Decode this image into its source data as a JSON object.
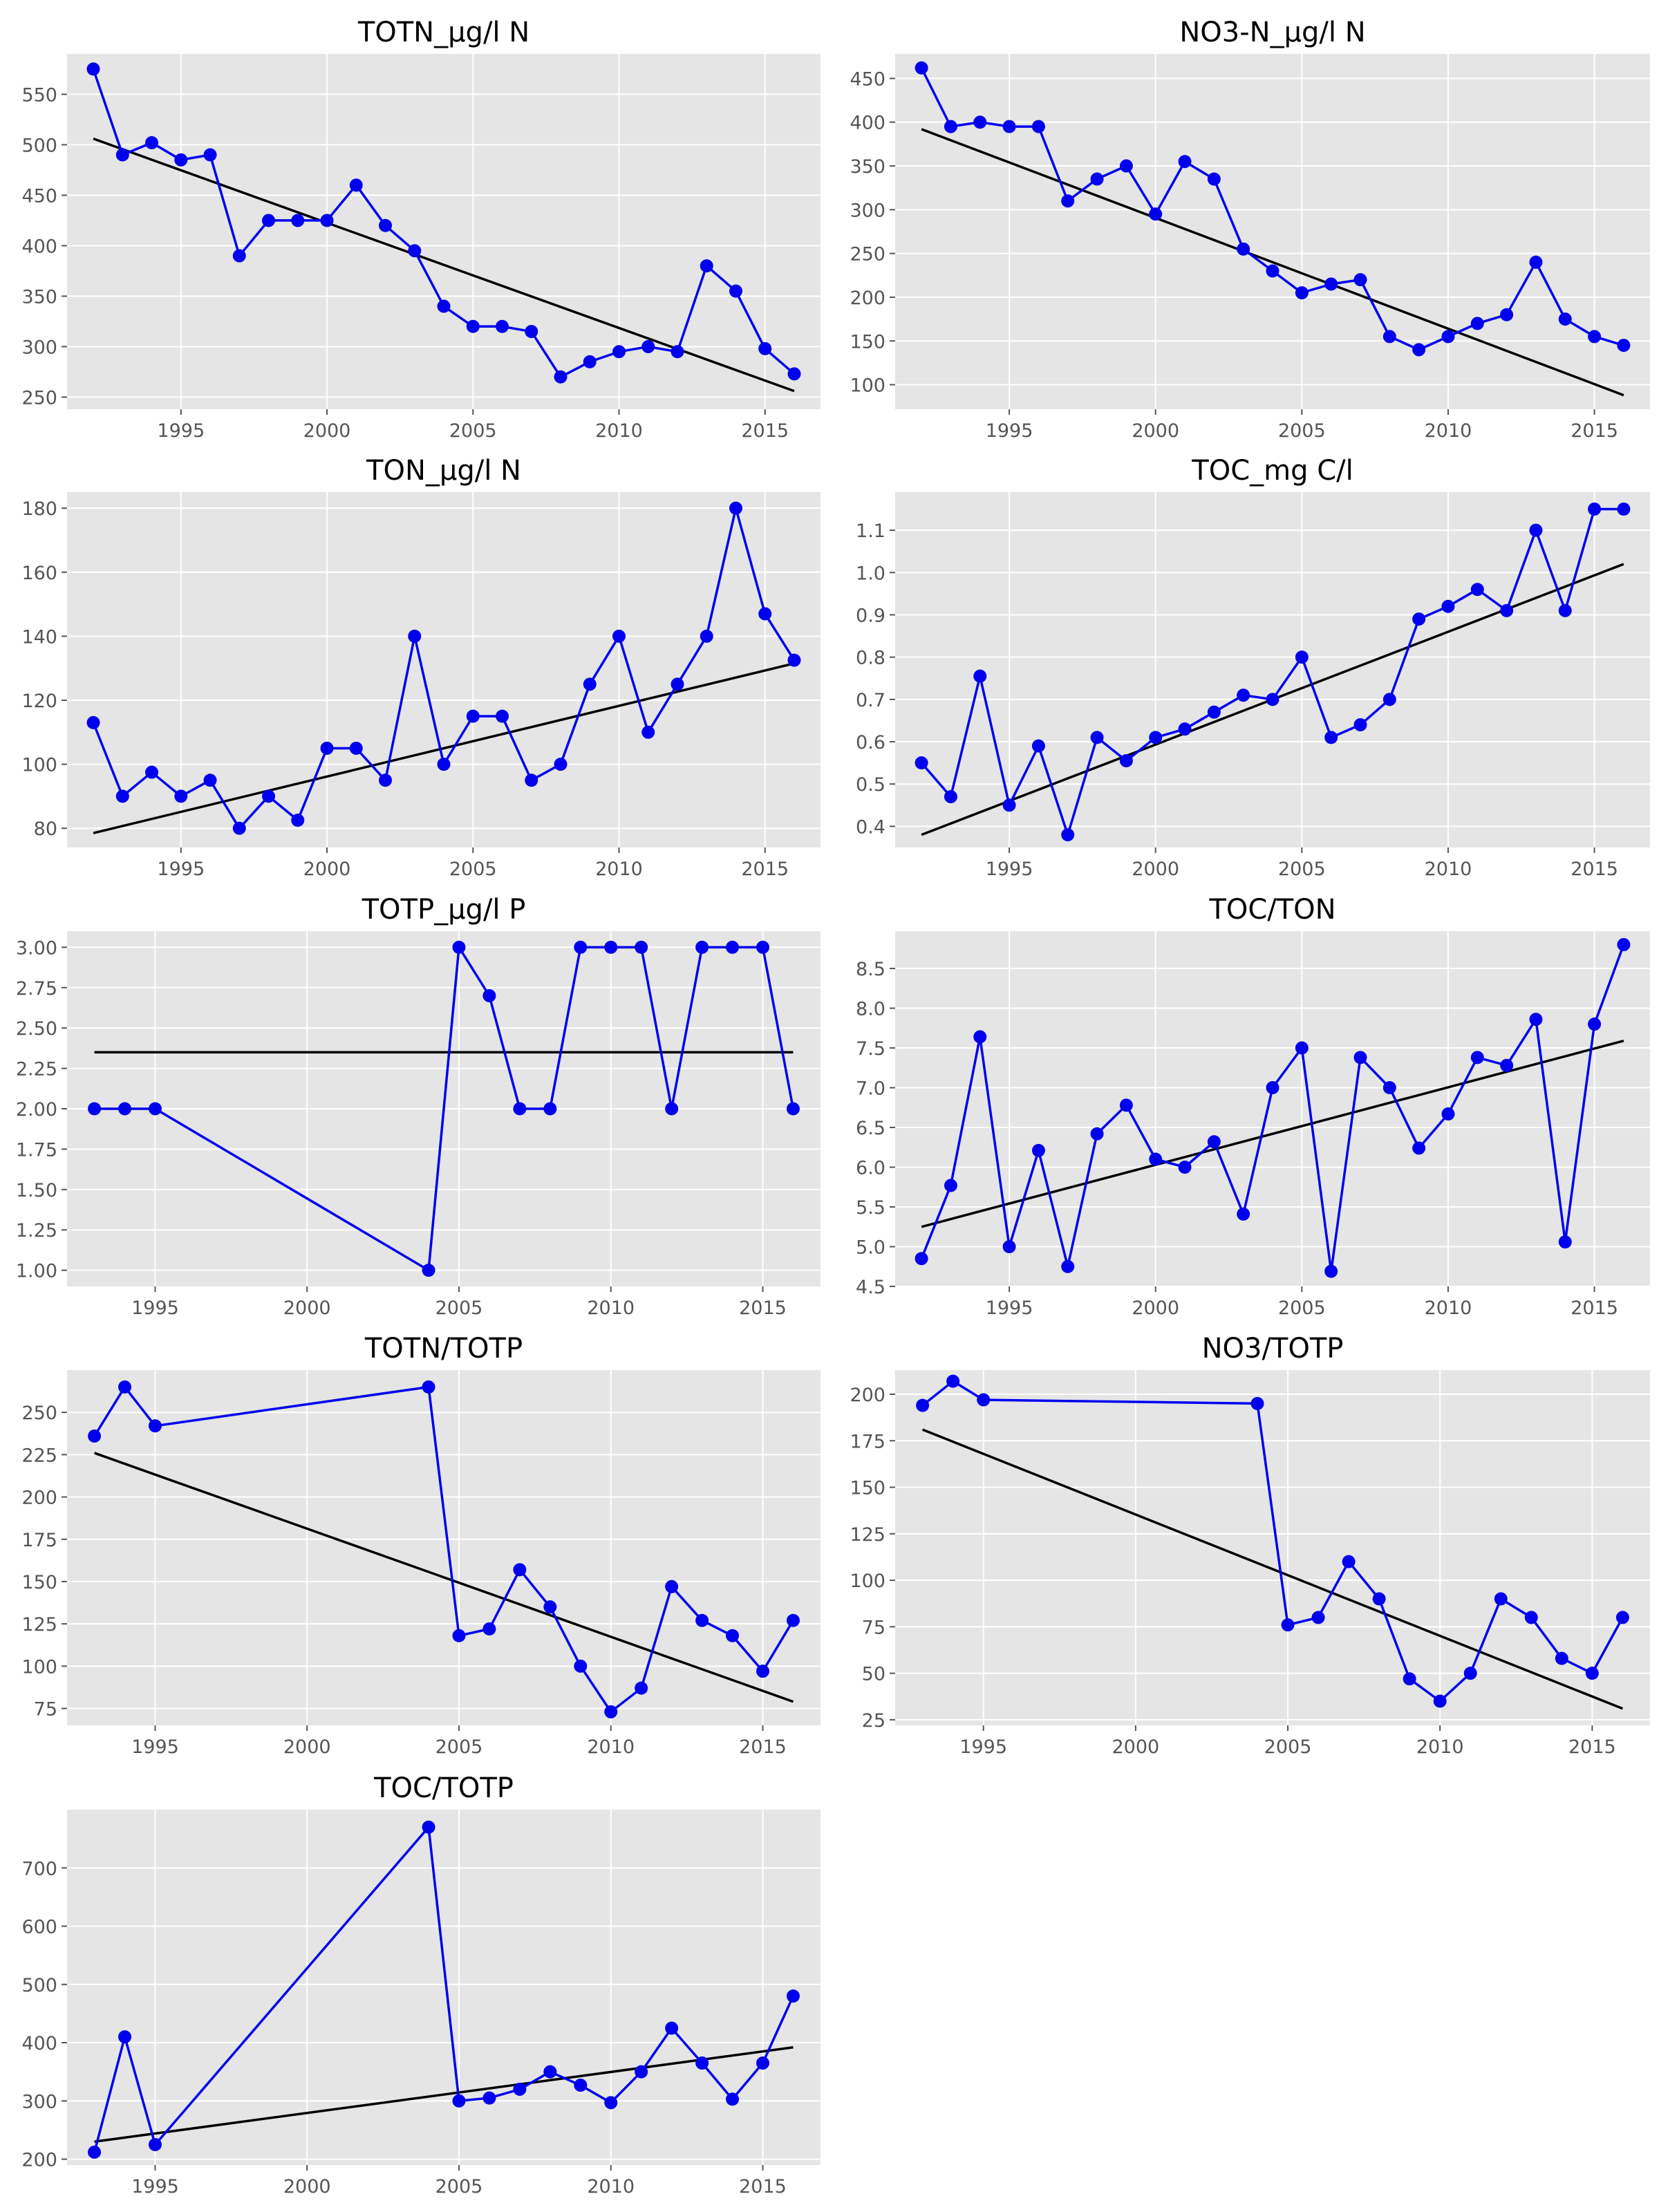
{
  "figure": {
    "layout": "5x2 grid of line plots with linear trend lines",
    "style": "ggplot"
  },
  "colors": {
    "panel_bg": "#e5e5e5",
    "grid": "#ffffff",
    "data_line": "#0000ee",
    "marker": "#0000ee",
    "trend": "#000000",
    "tick_text": "#555555"
  },
  "chart_data": [
    {
      "type": "line",
      "title": "TOTN_µg/l N",
      "grid": true,
      "xlim": [
        1991.1,
        2016.9
      ],
      "ylim": [
        238,
        590
      ],
      "xticks": [
        1995,
        2000,
        2005,
        2010,
        2015
      ],
      "yticks": [
        250,
        300,
        350,
        400,
        450,
        500,
        550
      ],
      "x": [
        1992,
        1993,
        1994,
        1995,
        1996,
        1997,
        1998,
        1999,
        2000,
        2001,
        2002,
        2003,
        2004,
        2005,
        2006,
        2007,
        2008,
        2009,
        2010,
        2011,
        2012,
        2013,
        2014,
        2015,
        2016
      ],
      "series": [
        {
          "values": [
            575,
            490,
            502,
            485,
            490,
            390,
            425,
            425,
            425,
            460,
            420,
            395,
            340,
            320,
            320,
            315,
            270,
            285,
            295,
            300,
            295,
            380,
            355,
            298,
            273
          ]
        }
      ],
      "trend": {
        "x": [
          1992,
          2016
        ],
        "y": [
          506,
          256
        ]
      }
    },
    {
      "type": "line",
      "title": "NO3-N_µg/l N",
      "grid": true,
      "xlim": [
        1991.1,
        2016.9
      ],
      "ylim": [
        72,
        478
      ],
      "xticks": [
        1995,
        2000,
        2005,
        2010,
        2015
      ],
      "yticks": [
        100,
        150,
        200,
        250,
        300,
        350,
        400,
        450
      ],
      "x": [
        1992,
        1993,
        1994,
        1995,
        1996,
        1997,
        1998,
        1999,
        2000,
        2001,
        2002,
        2003,
        2004,
        2005,
        2006,
        2007,
        2008,
        2009,
        2010,
        2011,
        2012,
        2013,
        2014,
        2015,
        2016
      ],
      "series": [
        {
          "values": [
            462,
            395,
            400,
            395,
            395,
            310,
            335,
            350,
            295,
            355,
            335,
            255,
            230,
            205,
            215,
            220,
            155,
            140,
            155,
            170,
            180,
            240,
            175,
            155,
            145
          ]
        }
      ],
      "trend": {
        "x": [
          1992,
          2016
        ],
        "y": [
          392,
          88
        ]
      }
    },
    {
      "type": "line",
      "title": "TON_µg/l N",
      "grid": true,
      "xlim": [
        1991.1,
        2016.9
      ],
      "ylim": [
        74,
        185
      ],
      "xticks": [
        1995,
        2000,
        2005,
        2010,
        2015
      ],
      "yticks": [
        80,
        100,
        120,
        140,
        160,
        180
      ],
      "x": [
        1992,
        1993,
        1994,
        1995,
        1996,
        1997,
        1998,
        1999,
        2000,
        2001,
        2002,
        2003,
        2004,
        2005,
        2006,
        2007,
        2008,
        2009,
        2010,
        2011,
        2012,
        2013,
        2014,
        2015,
        2016
      ],
      "series": [
        {
          "values": [
            113,
            90,
            97.5,
            90,
            95,
            80,
            90,
            82.5,
            105,
            105,
            95,
            140,
            100,
            115,
            115,
            95,
            100,
            125,
            140,
            110,
            125,
            140,
            180,
            147,
            132.5
          ]
        }
      ],
      "trend": {
        "x": [
          1992,
          2016
        ],
        "y": [
          78.5,
          131.5
        ]
      }
    },
    {
      "type": "line",
      "title": "TOC_mg C/l",
      "grid": true,
      "xlim": [
        1991.1,
        2016.9
      ],
      "ylim": [
        0.35,
        1.19
      ],
      "xticks": [
        1995,
        2000,
        2005,
        2010,
        2015
      ],
      "yticks": [
        0.4,
        0.5,
        0.6,
        0.7,
        0.8,
        0.9,
        1.0,
        1.1
      ],
      "ytick_decimals": 1,
      "x": [
        1992,
        1993,
        1994,
        1995,
        1996,
        1997,
        1998,
        1999,
        2000,
        2001,
        2002,
        2003,
        2004,
        2005,
        2006,
        2007,
        2008,
        2009,
        2010,
        2011,
        2012,
        2013,
        2014,
        2015,
        2016
      ],
      "series": [
        {
          "values": [
            0.55,
            0.47,
            0.755,
            0.45,
            0.59,
            0.38,
            0.61,
            0.555,
            0.61,
            0.63,
            0.67,
            0.71,
            0.7,
            0.8,
            0.61,
            0.64,
            0.7,
            0.89,
            0.92,
            0.96,
            0.91,
            1.1,
            0.91,
            1.15,
            1.15
          ]
        }
      ],
      "trend": {
        "x": [
          1992,
          2016
        ],
        "y": [
          0.38,
          1.02
        ]
      }
    },
    {
      "type": "line",
      "title": "TOTP_µg/l P",
      "grid": true,
      "xlim": [
        1992.1,
        2016.9
      ],
      "ylim": [
        0.9,
        3.1
      ],
      "xticks": [
        1995,
        2000,
        2005,
        2010,
        2015
      ],
      "yticks": [
        1.0,
        1.25,
        1.5,
        1.75,
        2.0,
        2.25,
        2.5,
        2.75,
        3.0
      ],
      "ytick_decimals": 2,
      "x": [
        1993,
        1994,
        1995,
        2004,
        2005,
        2006,
        2007,
        2008,
        2009,
        2010,
        2011,
        2012,
        2013,
        2014,
        2015,
        2016
      ],
      "series": [
        {
          "values": [
            2,
            2,
            2,
            1,
            3,
            2.7,
            2,
            2,
            3,
            3,
            3,
            2,
            3,
            3,
            3,
            2
          ]
        }
      ],
      "trend": {
        "x": [
          1993,
          2016
        ],
        "y": [
          2.35,
          2.35
        ]
      }
    },
    {
      "type": "line",
      "title": "TOC/TON",
      "grid": true,
      "xlim": [
        1991.1,
        2016.9
      ],
      "ylim": [
        4.5,
        8.97
      ],
      "xticks": [
        1995,
        2000,
        2005,
        2010,
        2015
      ],
      "yticks": [
        4.5,
        5.0,
        5.5,
        6.0,
        6.5,
        7.0,
        7.5,
        8.0,
        8.5
      ],
      "ytick_decimals": 1,
      "x": [
        1992,
        1993,
        1994,
        1995,
        1996,
        1997,
        1998,
        1999,
        2000,
        2001,
        2002,
        2003,
        2004,
        2005,
        2006,
        2007,
        2008,
        2009,
        2010,
        2011,
        2012,
        2013,
        2014,
        2015,
        2016
      ],
      "series": [
        {
          "values": [
            4.85,
            5.77,
            7.64,
            5.0,
            6.21,
            4.75,
            6.42,
            6.78,
            6.1,
            6.0,
            6.32,
            5.41,
            7.0,
            7.5,
            4.69,
            7.38,
            7.0,
            6.24,
            6.67,
            7.38,
            7.28,
            7.86,
            5.06,
            7.8,
            8.8
          ]
        }
      ],
      "trend": {
        "x": [
          1992,
          2016
        ],
        "y": [
          5.25,
          7.59
        ]
      }
    },
    {
      "type": "line",
      "title": "TOTN/TOTP",
      "grid": true,
      "xlim": [
        1992.1,
        2016.9
      ],
      "ylim": [
        65,
        275
      ],
      "xticks": [
        1995,
        2000,
        2005,
        2010,
        2015
      ],
      "yticks": [
        75,
        100,
        125,
        150,
        175,
        200,
        225,
        250
      ],
      "x": [
        1993,
        1994,
        1995,
        2004,
        2005,
        2006,
        2007,
        2008,
        2009,
        2010,
        2011,
        2012,
        2013,
        2014,
        2015,
        2016
      ],
      "series": [
        {
          "values": [
            236,
            265,
            242,
            265,
            118,
            122,
            157,
            135,
            100,
            73,
            87,
            147,
            127,
            118,
            97,
            127
          ]
        }
      ],
      "trend": {
        "x": [
          1993,
          2016
        ],
        "y": [
          226,
          79
        ]
      }
    },
    {
      "type": "line",
      "title": "NO3/TOTP",
      "grid": true,
      "xlim": [
        1992.1,
        2016.9
      ],
      "ylim": [
        22,
        213
      ],
      "xticks": [
        1995,
        2000,
        2005,
        2010,
        2015
      ],
      "yticks": [
        25,
        50,
        75,
        100,
        125,
        150,
        175,
        200
      ],
      "x": [
        1993,
        1994,
        1995,
        2004,
        2005,
        2006,
        2007,
        2008,
        2009,
        2010,
        2011,
        2012,
        2013,
        2014,
        2015,
        2016
      ],
      "series": [
        {
          "values": [
            194,
            207,
            197,
            195,
            76,
            80,
            110,
            90,
            47,
            35,
            50,
            90,
            80,
            58,
            50,
            80
          ]
        }
      ],
      "trend": {
        "x": [
          1993,
          2016
        ],
        "y": [
          181,
          31
        ]
      }
    },
    {
      "type": "line",
      "title": "TOC/TOTP",
      "grid": true,
      "xlim": [
        1992.1,
        2016.9
      ],
      "ylim": [
        190,
        800
      ],
      "xticks": [
        1995,
        2000,
        2005,
        2010,
        2015
      ],
      "yticks": [
        200,
        300,
        400,
        500,
        600,
        700
      ],
      "x": [
        1993,
        1994,
        1995,
        2004,
        2005,
        2006,
        2007,
        2008,
        2009,
        2010,
        2011,
        2012,
        2013,
        2014,
        2015,
        2016
      ],
      "series": [
        {
          "values": [
            212,
            410,
            225,
            770,
            300,
            305,
            320,
            350,
            327,
            297,
            350,
            425,
            365,
            303,
            365,
            480
          ]
        }
      ],
      "trend": {
        "x": [
          1993,
          2016
        ],
        "y": [
          230,
          392
        ]
      }
    }
  ]
}
